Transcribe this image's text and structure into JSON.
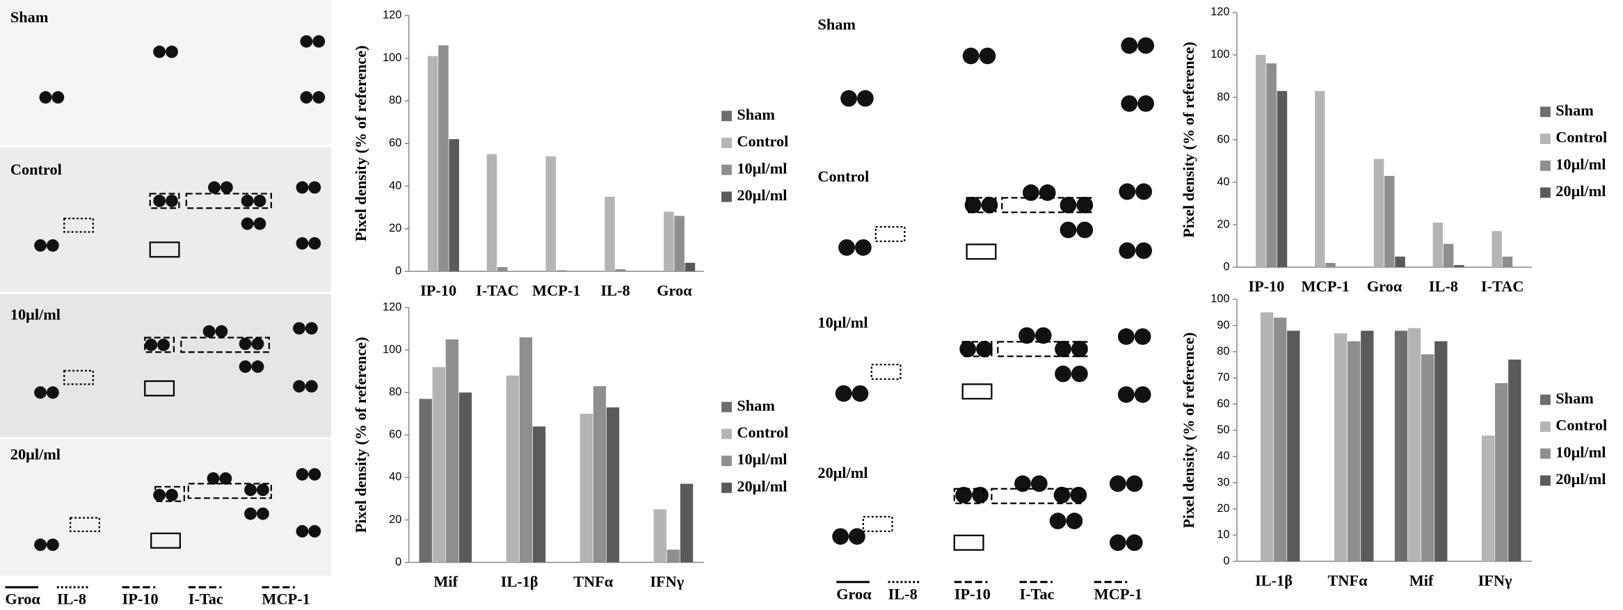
{
  "blots": [
    {
      "row_labels": [
        "Sham",
        "Control",
        "10μl/ml",
        "20μl/ml"
      ],
      "column_labels": [
        "Groα",
        "IL-8",
        "IP-10",
        "I-Tac",
        "MCP-1"
      ]
    },
    {
      "row_labels": [
        "Sham",
        "Control",
        "10μl/ml",
        "20μl/ml"
      ],
      "column_labels": [
        "Groα",
        "IL-8",
        "IP-10",
        "I-Tac",
        "MCP-1"
      ]
    }
  ],
  "chart_data": [
    {
      "type": "bar",
      "ylabel": "Pixel density  (% of reference)",
      "categories": [
        "IP-10",
        "I-TAC",
        "MCP-1",
        "IL-8",
        "Groα"
      ],
      "series": [
        {
          "name": "Sham",
          "color": "#6d6d6d",
          "values": [
            0,
            0,
            0,
            0,
            0
          ]
        },
        {
          "name": "Control",
          "color": "#b4b4b4",
          "values": [
            101,
            55,
            54,
            35,
            28
          ]
        },
        {
          "name": "10μl/ml",
          "color": "#8e8e8e",
          "values": [
            106,
            2,
            0.5,
            1,
            26
          ]
        },
        {
          "name": "20μl/ml",
          "color": "#5a5a5a",
          "values": [
            62,
            0,
            0,
            0,
            4
          ]
        }
      ],
      "ylim": [
        0,
        120
      ],
      "yticks": [
        0,
        20,
        40,
        60,
        80,
        100,
        120
      ],
      "grid": false,
      "legend": "right"
    },
    {
      "type": "bar",
      "ylabel": "Pixel density  (% of reference)",
      "categories": [
        "Mif",
        "IL-1β",
        "TNFα",
        "IFNγ"
      ],
      "series": [
        {
          "name": "Sham",
          "color": "#6d6d6d",
          "values": [
            77,
            0,
            0,
            0
          ]
        },
        {
          "name": "Control",
          "color": "#b4b4b4",
          "values": [
            92,
            88,
            70,
            25
          ]
        },
        {
          "name": "10μl/ml",
          "color": "#8e8e8e",
          "values": [
            105,
            106,
            83,
            6
          ]
        },
        {
          "name": "20μl/ml",
          "color": "#5a5a5a",
          "values": [
            80,
            64,
            73,
            37
          ]
        }
      ],
      "ylim": [
        0,
        120
      ],
      "yticks": [
        0,
        20,
        40,
        60,
        80,
        100,
        120
      ],
      "grid": false,
      "legend": "right"
    },
    {
      "type": "bar",
      "ylabel": "Pixel density  (% of reference)",
      "categories": [
        "IP-10",
        "MCP-1",
        "Groα",
        "IL-8",
        "I-TAC"
      ],
      "series": [
        {
          "name": "Sham",
          "color": "#6d6d6d",
          "values": [
            0,
            0,
            0,
            0,
            0
          ]
        },
        {
          "name": "Control",
          "color": "#b4b4b4",
          "values": [
            100,
            83,
            51,
            21,
            17
          ]
        },
        {
          "name": "10μl/ml",
          "color": "#8e8e8e",
          "values": [
            96,
            2,
            43,
            11,
            5
          ]
        },
        {
          "name": "20μl/ml",
          "color": "#5a5a5a",
          "values": [
            83,
            0,
            5,
            1,
            0
          ]
        }
      ],
      "ylim": [
        0,
        120
      ],
      "yticks": [
        0,
        20,
        40,
        60,
        80,
        100,
        120
      ],
      "grid": false,
      "legend": "right"
    },
    {
      "type": "bar",
      "ylabel": "Pixel density  (% of reference)",
      "categories": [
        "IL-1β",
        "TNFα",
        "Mif",
        "IFNγ"
      ],
      "series": [
        {
          "name": "Sham",
          "color": "#6d6d6d",
          "values": [
            0,
            0,
            88,
            0
          ]
        },
        {
          "name": "Control",
          "color": "#b4b4b4",
          "values": [
            95,
            87,
            89,
            48
          ]
        },
        {
          "name": "10μl/ml",
          "color": "#8e8e8e",
          "values": [
            93,
            84,
            79,
            68
          ]
        },
        {
          "name": "20μl/ml",
          "color": "#5a5a5a",
          "values": [
            88,
            88,
            84,
            77
          ]
        }
      ],
      "ylim": [
        0,
        100
      ],
      "yticks": [
        0,
        10,
        20,
        30,
        40,
        50,
        60,
        70,
        80,
        90,
        100
      ],
      "grid": false,
      "legend": "right"
    }
  ]
}
